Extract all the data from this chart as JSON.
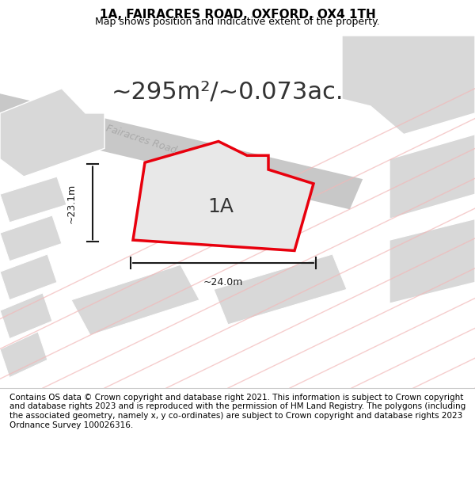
{
  "title": "1A, FAIRACRES ROAD, OXFORD, OX4 1TH",
  "subtitle": "Map shows position and indicative extent of the property.",
  "area_text": "~295m²/~0.073ac.",
  "label_1a": "1A",
  "dim_width": "~24.0m",
  "dim_height": "~23.1m",
  "road_label": "Fairacres Road",
  "footer": "Contains OS data © Crown copyright and database right 2021. This information is subject to Crown copyright and database rights 2023 and is reproduced with the permission of HM Land Registry. The polygons (including the associated geometry, namely x, y co-ordinates) are subject to Crown copyright and database rights 2023 Ordnance Survey 100026316.",
  "bg_color": "#f5f5f5",
  "map_bg": "#f0eeec",
  "plot_fill": "#e8e8e8",
  "plot_edge": "#e8e8e8",
  "red_outline": "#e8000d",
  "road_line_color": "#d0d0d0",
  "road_pink": "#f2b8b8",
  "building_gray": "#d8d8d8",
  "dim_line_color": "#1a1a1a",
  "title_fontsize": 11,
  "subtitle_fontsize": 9,
  "area_fontsize": 22,
  "label_fontsize": 18,
  "footer_fontsize": 7.5
}
